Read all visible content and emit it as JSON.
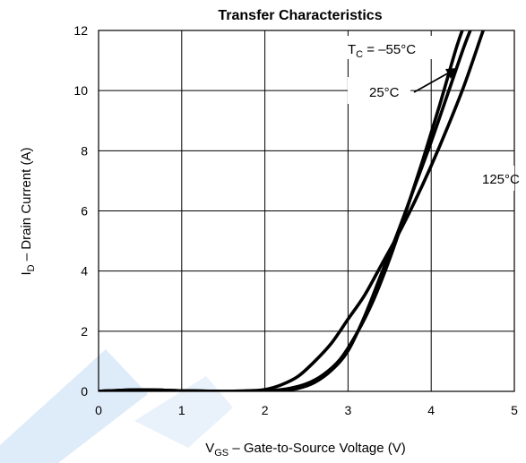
{
  "chart_data": {
    "type": "line",
    "title": "Transfer Characteristics",
    "xlabel_main": "V",
    "xlabel_sub": "GS",
    "xlabel_rest": " –  Gate-to-Source Voltage (V)",
    "ylabel_main": "I",
    "ylabel_sub": "D",
    "ylabel_rest": " –  Drain Current (A)",
    "xlim": [
      0,
      5
    ],
    "ylim": [
      0,
      12
    ],
    "x_ticks": [
      "0",
      "1",
      "2",
      "3",
      "4",
      "5"
    ],
    "y_ticks": [
      "0",
      "2",
      "4",
      "6",
      "8",
      "10",
      "12"
    ],
    "grid": true,
    "series": [
      {
        "name": "T_C = –55°C",
        "x": [
          0,
          0.5,
          1.0,
          1.5,
          1.9,
          2.1,
          2.3,
          2.5,
          2.7,
          2.9,
          3.1,
          3.3,
          3.5,
          3.7,
          3.9,
          4.1,
          4.3,
          4.4
        ],
        "y": [
          0.0,
          0.05,
          0.02,
          0.0,
          0.0,
          0.03,
          0.1,
          0.25,
          0.55,
          1.05,
          1.9,
          3.0,
          4.4,
          6.0,
          7.7,
          9.5,
          11.4,
          12.2
        ]
      },
      {
        "name": "25°C",
        "x": [
          0,
          0.5,
          1.0,
          1.5,
          2.0,
          2.2,
          2.4,
          2.6,
          2.8,
          3.0,
          3.2,
          3.4,
          3.6,
          3.8,
          4.0,
          4.2,
          4.4,
          4.5
        ],
        "y": [
          0.0,
          0.05,
          0.02,
          0.0,
          0.0,
          0.03,
          0.1,
          0.3,
          0.7,
          1.35,
          2.5,
          3.9,
          5.3,
          6.8,
          8.3,
          9.9,
          11.5,
          12.2
        ]
      },
      {
        "name": "125°C",
        "x": [
          0,
          0.5,
          1.0,
          1.5,
          1.8,
          2.0,
          2.2,
          2.4,
          2.6,
          2.8,
          3.0,
          3.2,
          3.4,
          3.6,
          3.8,
          4.0,
          4.2,
          4.4,
          4.6,
          4.65
        ],
        "y": [
          0.0,
          0.05,
          0.02,
          0.0,
          0.02,
          0.06,
          0.22,
          0.5,
          1.0,
          1.6,
          2.4,
          3.2,
          4.2,
          5.2,
          6.3,
          7.5,
          8.8,
          10.2,
          11.8,
          12.2
        ]
      }
    ],
    "annotations": {
      "tc_main": "T",
      "tc_sub": "C",
      "tc_rest": " = –55°C",
      "t25": "25°C",
      "t125": "125°C"
    }
  }
}
